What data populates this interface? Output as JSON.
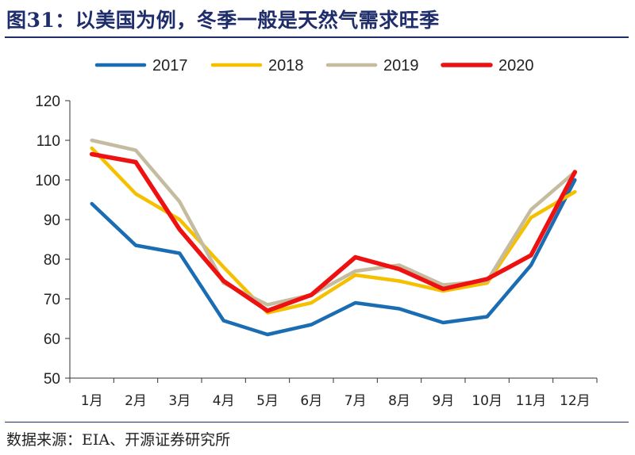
{
  "figure": {
    "title": "图31：以美国为例，冬季一般是天然气需求旺季",
    "source": "数据来源：EIA、开源证券研究所"
  },
  "chart_data": {
    "type": "line",
    "categories": [
      "1月",
      "2月",
      "3月",
      "4月",
      "5月",
      "6月",
      "7月",
      "8月",
      "9月",
      "10月",
      "11月",
      "12月"
    ],
    "ylim": [
      50,
      120
    ],
    "yticks": [
      50,
      60,
      70,
      80,
      90,
      100,
      110,
      120
    ],
    "grid": false,
    "legend_position": "top",
    "series": [
      {
        "name": "2017",
        "color": "#1a6db3",
        "values": [
          94,
          83.5,
          81.5,
          64.5,
          61,
          63.5,
          69,
          67.5,
          64,
          65.5,
          78.5,
          100
        ]
      },
      {
        "name": "2018",
        "color": "#f5c000",
        "values": [
          108,
          96.5,
          90,
          78,
          66.5,
          69,
          76,
          74.5,
          72,
          74,
          90.5,
          97
        ]
      },
      {
        "name": "2019",
        "color": "#c5bb9f",
        "values": [
          110,
          107.5,
          94.5,
          74,
          68.5,
          71,
          77,
          78.5,
          73.5,
          74.5,
          92.5,
          102
        ]
      },
      {
        "name": "2020",
        "color": "#ee1111",
        "values": [
          106.5,
          104.5,
          87.5,
          74.5,
          67,
          71,
          80.5,
          77.5,
          72.5,
          75,
          81,
          102
        ]
      }
    ]
  }
}
